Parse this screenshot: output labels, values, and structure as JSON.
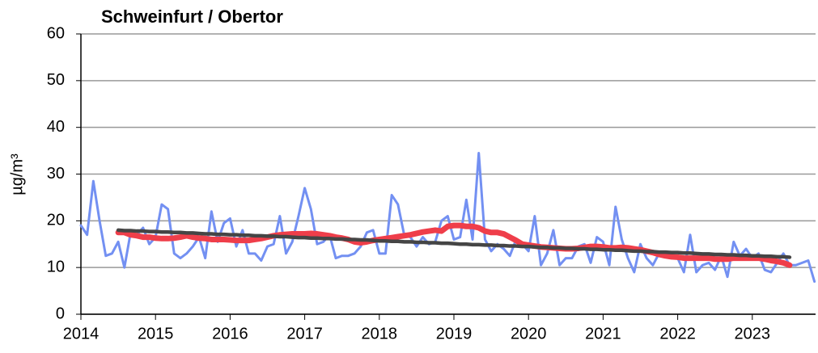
{
  "chart_data": {
    "type": "line",
    "title": "Schweinfurt / Obertor",
    "ylabel": "µg/m³",
    "categories": [
      "2014",
      null,
      null,
      null,
      null,
      null,
      null,
      null,
      null,
      null,
      null,
      null,
      "2015",
      null,
      null,
      null,
      null,
      null,
      null,
      null,
      null,
      null,
      null,
      null,
      "2016",
      null,
      null,
      null,
      null,
      null,
      null,
      null,
      null,
      null,
      null,
      null,
      "2017",
      null,
      null,
      null,
      null,
      null,
      null,
      null,
      null,
      null,
      null,
      null,
      "2018",
      null,
      null,
      null,
      null,
      null,
      null,
      null,
      null,
      null,
      null,
      null,
      "2019",
      null,
      null,
      null,
      null,
      null,
      null,
      null,
      null,
      null,
      null,
      null,
      "2020",
      null,
      null,
      null,
      null,
      null,
      null,
      null,
      null,
      null,
      null,
      null,
      "2021",
      null,
      null,
      null,
      null,
      null,
      null,
      null,
      null,
      null,
      null,
      null,
      "2022",
      null,
      null,
      null,
      null,
      null,
      null,
      null,
      null,
      null,
      null,
      null,
      "2023",
      null,
      null,
      null,
      null,
      null,
      null,
      null,
      null,
      null,
      null
    ],
    "ylim": [
      0,
      60
    ],
    "yticks": [
      0,
      10,
      20,
      30,
      40,
      50,
      60
    ],
    "grid": true,
    "series": [
      {
        "color": "#7390f2",
        "values": [
          19,
          17,
          28.5,
          20,
          12.5,
          13,
          15.5,
          10,
          17.5,
          17,
          18.5,
          15,
          16.5,
          23.5,
          22.5,
          13,
          12,
          13,
          14.5,
          16.5,
          12,
          22,
          15.5,
          19.5,
          20.5,
          14.5,
          18,
          13,
          13,
          11.5,
          14.5,
          15,
          21,
          13,
          15.5,
          21,
          27,
          22.5,
          15,
          15.5,
          17,
          12,
          12.5,
          12.5,
          13,
          14.5,
          17.5,
          18,
          13,
          13,
          25.5,
          23.5,
          17,
          16.5,
          14.5,
          16.5,
          15,
          15.5,
          20,
          21,
          16,
          16.5,
          24.5,
          16,
          34.5,
          16,
          13.5,
          15,
          14,
          12.5,
          16,
          15,
          13.5,
          21,
          10.5,
          13,
          18,
          10.5,
          12,
          12,
          14.5,
          15,
          11,
          16.5,
          15.5,
          10.5,
          23,
          16,
          12,
          9,
          15,
          12,
          10.5,
          13,
          13,
          12.5,
          12,
          9,
          17,
          9,
          10.5,
          11,
          9.5,
          12.5,
          8,
          15.5,
          12.5,
          14,
          12,
          13,
          9.5,
          9,
          11,
          13,
          10.5,
          10.5,
          11,
          11.5,
          7
        ]
      },
      {
        "color": "#ef3e4a",
        "values": [
          null,
          null,
          null,
          null,
          null,
          null,
          17.5,
          17.5,
          17,
          16.8,
          16.5,
          16.5,
          16.3,
          16.2,
          16.2,
          16.3,
          16.5,
          16.8,
          16.5,
          16.3,
          16.2,
          16,
          16,
          16,
          15.9,
          15.8,
          15.8,
          15.8,
          16,
          16.2,
          16.5,
          16.8,
          17,
          17.1,
          17.2,
          17.2,
          17.2,
          17.3,
          17.2,
          17,
          16.8,
          16.5,
          16.3,
          16,
          15.5,
          15.3,
          15.5,
          15.8,
          16,
          16.2,
          16.4,
          16.6,
          16.8,
          17,
          17.3,
          17.6,
          17.8,
          18,
          17.8,
          18.8,
          19,
          19,
          18.8,
          18.8,
          18.5,
          17.8,
          17.5,
          17.5,
          17.2,
          16.5,
          15.8,
          15,
          14.8,
          14.6,
          14.4,
          14.3,
          14.2,
          14.1,
          14,
          14,
          14.1,
          14.3,
          14.5,
          14.5,
          14.4,
          14.2,
          14.2,
          14.3,
          14.2,
          14,
          13.8,
          13.5,
          13.2,
          12.8,
          12.5,
          12.3,
          12.2,
          12,
          12,
          12,
          12,
          12,
          11.8,
          11.8,
          11.8,
          12,
          12,
          12,
          12,
          12,
          11.8,
          11.5,
          11.3,
          11,
          10.5,
          null,
          null,
          null,
          null
        ]
      },
      {
        "color": "#454545",
        "values": [
          null,
          null,
          null,
          null,
          null,
          null,
          18.0,
          17.9,
          17.9,
          17.8,
          17.8,
          17.7,
          17.7,
          17.6,
          17.6,
          17.5,
          17.5,
          17.4,
          17.4,
          17.3,
          17.2,
          17.2,
          17.1,
          17.1,
          17.0,
          17.0,
          16.9,
          16.9,
          16.8,
          16.8,
          16.7,
          16.7,
          16.6,
          16.6,
          16.5,
          16.4,
          16.4,
          16.3,
          16.3,
          16.2,
          16.2,
          16.1,
          16.1,
          16.0,
          16.0,
          15.9,
          15.9,
          15.8,
          15.7,
          15.7,
          15.6,
          15.6,
          15.5,
          15.5,
          15.4,
          15.4,
          15.3,
          15.3,
          15.2,
          15.2,
          15.1,
          15.0,
          15.0,
          14.9,
          14.9,
          14.8,
          14.8,
          14.7,
          14.7,
          14.6,
          14.6,
          14.5,
          14.5,
          14.4,
          14.3,
          14.3,
          14.2,
          14.2,
          14.1,
          14.1,
          14.0,
          14.0,
          13.9,
          13.9,
          13.8,
          13.8,
          13.7,
          13.7,
          13.6,
          13.5,
          13.5,
          13.4,
          13.4,
          13.3,
          13.3,
          13.2,
          13.2,
          13.1,
          13.1,
          13.0,
          12.9,
          12.9,
          12.8,
          12.8,
          12.7,
          12.7,
          12.6,
          12.6,
          12.5,
          12.5,
          12.4,
          12.4,
          12.3,
          12.3,
          12.2,
          null,
          null,
          null,
          null
        ]
      }
    ]
  }
}
